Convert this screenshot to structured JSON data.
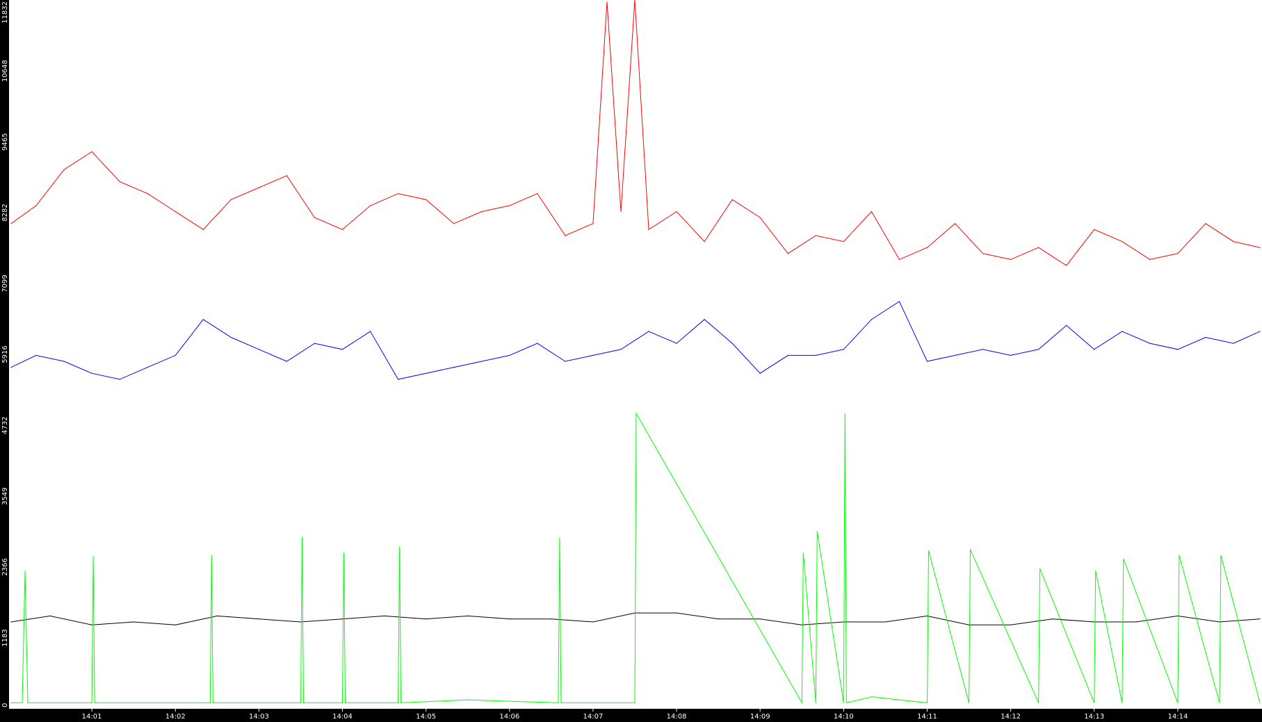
{
  "chart_data": {
    "type": "line",
    "title": "",
    "xlabel": "",
    "ylabel": "",
    "ylim": [
      0,
      11832
    ],
    "yticks": [
      "0",
      "1183",
      "2366",
      "3549",
      "4732",
      "5916",
      "7099",
      "8282",
      "9465",
      "10648",
      "11832"
    ],
    "ytick_values": [
      0,
      1183,
      2366,
      3549,
      4732,
      5916,
      7099,
      8282,
      9465,
      10648,
      11832
    ],
    "xlim": [
      "14:00:02",
      "14:14:59"
    ],
    "xticks": [
      "14:01",
      "14:02",
      "14:03",
      "14:04",
      "14:05",
      "14:06",
      "14:07",
      "14:08",
      "14:09",
      "14:10",
      "14:11",
      "14:12",
      "14:13",
      "14:14"
    ],
    "grid": false,
    "legend": "none",
    "series": [
      {
        "color": "#ff0000",
        "x": [
          "14:00:02",
          "14:00:20",
          "14:00:40",
          "14:01:00",
          "14:01:20",
          "14:01:40",
          "14:02:00",
          "14:02:20",
          "14:02:40",
          "14:03:00",
          "14:03:20",
          "14:03:40",
          "14:04:00",
          "14:04:20",
          "14:04:40",
          "14:05:00",
          "14:05:20",
          "14:05:40",
          "14:06:00",
          "14:06:20",
          "14:06:40",
          "14:07:00",
          "14:07:10",
          "14:07:20",
          "14:07:30",
          "14:07:40",
          "14:08:00",
          "14:08:20",
          "14:08:40",
          "14:09:00",
          "14:09:20",
          "14:09:40",
          "14:10:00",
          "14:10:20",
          "14:10:40",
          "14:11:00",
          "14:11:20",
          "14:11:40",
          "14:12:00",
          "14:12:20",
          "14:12:40",
          "14:13:00",
          "14:13:20",
          "14:13:40",
          "14:14:00",
          "14:14:20",
          "14:14:40",
          "14:14:59"
        ],
        "values": [
          8100,
          8400,
          9000,
          9300,
          8800,
          8600,
          8300,
          8000,
          8500,
          8700,
          8900,
          8200,
          8000,
          8400,
          8600,
          8500,
          8100,
          8300,
          8400,
          8600,
          7900,
          8100,
          11800,
          8300,
          11832,
          8000,
          8300,
          7800,
          8500,
          8200,
          7600,
          7900,
          7800,
          8300,
          7500,
          7700,
          8100,
          7600,
          7500,
          7700,
          7400,
          8000,
          7800,
          7500,
          7600,
          8100,
          7800,
          7700
        ]
      },
      {
        "color": "#0000ff",
        "x": [
          "14:00:02",
          "14:00:20",
          "14:00:40",
          "14:01:00",
          "14:01:20",
          "14:01:40",
          "14:02:00",
          "14:02:20",
          "14:02:40",
          "14:03:00",
          "14:03:20",
          "14:03:40",
          "14:04:00",
          "14:04:20",
          "14:04:40",
          "14:05:00",
          "14:05:20",
          "14:05:40",
          "14:06:00",
          "14:06:20",
          "14:06:40",
          "14:07:00",
          "14:07:20",
          "14:07:40",
          "14:08:00",
          "14:08:20",
          "14:08:40",
          "14:09:00",
          "14:09:20",
          "14:09:40",
          "14:10:00",
          "14:10:20",
          "14:10:40",
          "14:11:00",
          "14:11:20",
          "14:11:40",
          "14:12:00",
          "14:12:20",
          "14:12:40",
          "14:13:00",
          "14:13:20",
          "14:13:40",
          "14:14:00",
          "14:14:20",
          "14:14:40",
          "14:14:59"
        ],
        "values": [
          5700,
          5900,
          5800,
          5600,
          5500,
          5700,
          5900,
          6500,
          6200,
          6000,
          5800,
          6100,
          6000,
          6300,
          5500,
          5600,
          5700,
          5800,
          5900,
          6100,
          5800,
          5900,
          6000,
          6300,
          6100,
          6500,
          6100,
          5600,
          5900,
          5900,
          6000,
          6500,
          6800,
          5800,
          5900,
          6000,
          5900,
          6000,
          6400,
          6000,
          6300,
          6100,
          6000,
          6200,
          6100,
          6300
        ]
      },
      {
        "color": "#000000",
        "x": [
          "14:00:02",
          "14:00:30",
          "14:01:00",
          "14:01:30",
          "14:02:00",
          "14:02:30",
          "14:03:00",
          "14:03:30",
          "14:04:00",
          "14:04:30",
          "14:05:00",
          "14:05:30",
          "14:06:00",
          "14:06:30",
          "14:07:00",
          "14:07:30",
          "14:08:00",
          "14:08:30",
          "14:09:00",
          "14:09:30",
          "14:10:00",
          "14:10:30",
          "14:11:00",
          "14:11:30",
          "14:12:00",
          "14:12:30",
          "14:13:00",
          "14:13:30",
          "14:14:00",
          "14:14:30",
          "14:14:59"
        ],
        "values": [
          1450,
          1550,
          1400,
          1450,
          1400,
          1550,
          1500,
          1450,
          1500,
          1550,
          1500,
          1550,
          1500,
          1500,
          1450,
          1600,
          1600,
          1500,
          1500,
          1400,
          1450,
          1450,
          1550,
          1400,
          1400,
          1500,
          1450,
          1450,
          1550,
          1450,
          1500
        ]
      },
      {
        "color": "#00ff00",
        "x": [
          "14:00:02",
          "14:00:10",
          "14:00:12",
          "14:00:14",
          "14:01:00",
          "14:01:01",
          "14:01:02",
          "14:02:25",
          "14:02:26",
          "14:02:27",
          "14:03:30",
          "14:03:31",
          "14:03:32",
          "14:04:00",
          "14:04:01",
          "14:04:02",
          "14:04:40",
          "14:04:41",
          "14:04:42",
          "14:05:30",
          "14:06:35",
          "14:06:36",
          "14:06:37",
          "14:07:30",
          "14:07:31",
          "14:09:30",
          "14:09:31",
          "14:09:40",
          "14:09:41",
          "14:10:00",
          "14:10:01",
          "14:10:02",
          "14:10:20",
          "14:11:00",
          "14:11:01",
          "14:11:30",
          "14:11:31",
          "14:12:20",
          "14:12:21",
          "14:13:00",
          "14:13:01",
          "14:13:20",
          "14:13:21",
          "14:14:00",
          "14:14:01",
          "14:14:30",
          "14:14:31",
          "14:14:59"
        ],
        "values": [
          100,
          100,
          2300,
          100,
          100,
          2540,
          100,
          100,
          2560,
          100,
          100,
          2860,
          100,
          100,
          2600,
          100,
          100,
          2700,
          100,
          150,
          100,
          2850,
          100,
          100,
          4930,
          100,
          2600,
          100,
          2960,
          100,
          4930,
          100,
          200,
          100,
          2640,
          100,
          2660,
          100,
          2340,
          100,
          2300,
          100,
          2500,
          100,
          2560,
          100,
          2560,
          100
        ]
      }
    ]
  }
}
